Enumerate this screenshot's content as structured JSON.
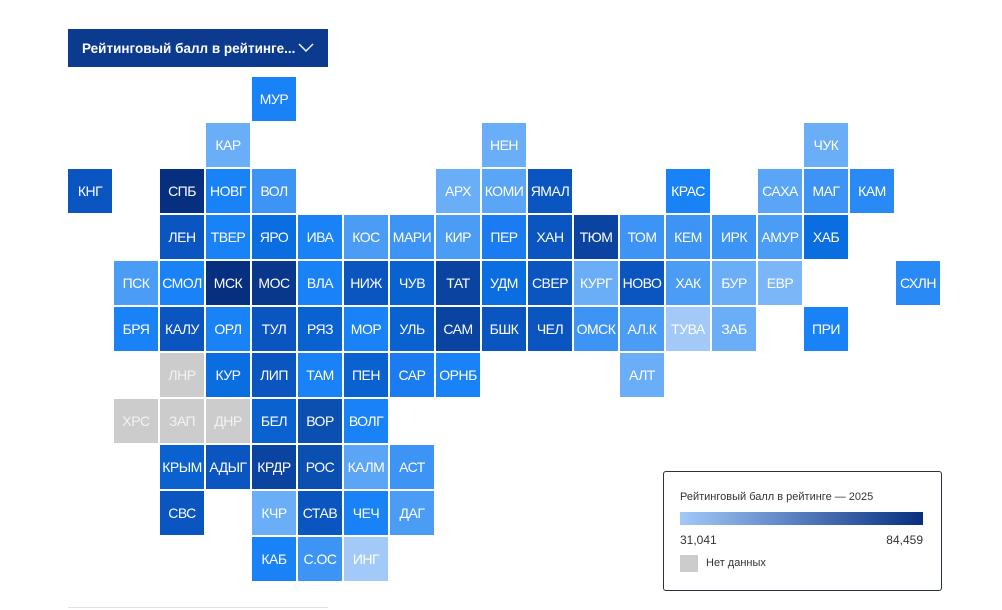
{
  "dropdown": {
    "label": "Рейтинговый балл в рейтинге...",
    "icon": "chevron-down-icon"
  },
  "colors": {
    "brand": "#0b3a8e",
    "no_data": "#cccccc",
    "scale_min": "#a3c9f9",
    "scale_max": "#072f80"
  },
  "tiles": [
    {
      "label": "МУР",
      "color": "#1a82f7"
    },
    {
      "label": "КАР",
      "color": "#6aaef7"
    },
    {
      "label": "НЕН",
      "color": "#6aaef7"
    },
    {
      "label": "ЧУК",
      "color": "#6aaef7"
    },
    {
      "label": "КНГ",
      "color": "#0b55c0"
    },
    {
      "label": "СПБ",
      "color": "#072f80"
    },
    {
      "label": "НОВГ",
      "color": "#1a82f7"
    },
    {
      "label": "ВОЛ",
      "color": "#3d94f5"
    },
    {
      "label": "АРХ",
      "color": "#6aaef7"
    },
    {
      "label": "КОМИ",
      "color": "#5aa5f5"
    },
    {
      "label": "ЯМАЛ",
      "color": "#0b55c0"
    },
    {
      "label": "КРАС",
      "color": "#1a82f7"
    },
    {
      "label": "САХА",
      "color": "#5aa5f5"
    },
    {
      "label": "МАГ",
      "color": "#3d94f5"
    },
    {
      "label": "КАМ",
      "color": "#2a8af5"
    },
    {
      "label": "ЛЕН",
      "color": "#0b55c0"
    },
    {
      "label": "ТВЕР",
      "color": "#1a82f7"
    },
    {
      "label": "ЯРО",
      "color": "#0a6ee0"
    },
    {
      "label": "ИВА",
      "color": "#1a82f7"
    },
    {
      "label": "КОС",
      "color": "#4a9cf5"
    },
    {
      "label": "МАРИ",
      "color": "#3d94f5"
    },
    {
      "label": "КИР",
      "color": "#4a9cf5"
    },
    {
      "label": "ПЕР",
      "color": "#1a7cf0"
    },
    {
      "label": "ХАН",
      "color": "#0b55c0"
    },
    {
      "label": "ТЮМ",
      "color": "#0a44a0"
    },
    {
      "label": "ТОМ",
      "color": "#3d94f5"
    },
    {
      "label": "КЕМ",
      "color": "#3d94f5"
    },
    {
      "label": "ИРК",
      "color": "#3d94f5"
    },
    {
      "label": "АМУР",
      "color": "#4a9cf5"
    },
    {
      "label": "ХАБ",
      "color": "#0a6ee0"
    },
    {
      "label": "ПСК",
      "color": "#4a9cf5"
    },
    {
      "label": "СМОЛ",
      "color": "#1a82f7"
    },
    {
      "label": "МСК",
      "color": "#072f80"
    },
    {
      "label": "МОС",
      "color": "#08378c"
    },
    {
      "label": "ВЛА",
      "color": "#1a82f7"
    },
    {
      "label": "НИЖ",
      "color": "#0b55c0"
    },
    {
      "label": "ЧУВ",
      "color": "#0a62d0"
    },
    {
      "label": "ТАТ",
      "color": "#0a44a0"
    },
    {
      "label": "УДМ",
      "color": "#0a6ee0"
    },
    {
      "label": "СВЕР",
      "color": "#0b55c0"
    },
    {
      "label": "КУРГ",
      "color": "#6aaef7"
    },
    {
      "label": "НОВО",
      "color": "#0b55c0"
    },
    {
      "label": "ХАК",
      "color": "#4a9cf5"
    },
    {
      "label": "БУР",
      "color": "#6aaef7"
    },
    {
      "label": "ЕВР",
      "color": "#7ab6f8"
    },
    {
      "label": "СХЛН",
      "color": "#2a8af5"
    },
    {
      "label": "БРЯ",
      "color": "#1a82f7"
    },
    {
      "label": "КАЛУ",
      "color": "#0b55c0"
    },
    {
      "label": "ОРЛ",
      "color": "#1a82f7"
    },
    {
      "label": "ТУЛ",
      "color": "#0b55c0"
    },
    {
      "label": "РЯЗ",
      "color": "#0a62d0"
    },
    {
      "label": "МОР",
      "color": "#1a82f7"
    },
    {
      "label": "УЛЬ",
      "color": "#0a62d0"
    },
    {
      "label": "САМ",
      "color": "#0a44a0"
    },
    {
      "label": "БШК",
      "color": "#0b55c0"
    },
    {
      "label": "ЧЕЛ",
      "color": "#0b55c0"
    },
    {
      "label": "ОМСК",
      "color": "#3d94f5"
    },
    {
      "label": "АЛ.К",
      "color": "#4a9cf5"
    },
    {
      "label": "ТУВА",
      "color": "#a3c9f9"
    },
    {
      "label": "ЗАБ",
      "color": "#6aaef7"
    },
    {
      "label": "ПРИ",
      "color": "#1a82f7"
    },
    {
      "label": "ЛНР",
      "color": "#cccccc",
      "nodata": true
    },
    {
      "label": "КУР",
      "color": "#0a6ee0"
    },
    {
      "label": "ЛИП",
      "color": "#0b55c0"
    },
    {
      "label": "ТАМ",
      "color": "#1a82f7"
    },
    {
      "label": "ПЕН",
      "color": "#0a62d0"
    },
    {
      "label": "САР",
      "color": "#1a7cf0"
    },
    {
      "label": "ОРНБ",
      "color": "#1a82f7"
    },
    {
      "label": "АЛТ",
      "color": "#6aaef7"
    },
    {
      "label": "ХРС",
      "color": "#cccccc",
      "nodata": true
    },
    {
      "label": "ЗАП",
      "color": "#cccccc",
      "nodata": true
    },
    {
      "label": "ДНР",
      "color": "#cccccc",
      "nodata": true
    },
    {
      "label": "БЕЛ",
      "color": "#0a62d0"
    },
    {
      "label": "ВОР",
      "color": "#0b4fb0"
    },
    {
      "label": "ВОЛГ",
      "color": "#1a82f7"
    },
    {
      "label": "КРЫМ",
      "color": "#0a62d0"
    },
    {
      "label": "АДЫГ",
      "color": "#0b55c0"
    },
    {
      "label": "КРДР",
      "color": "#0a44a0"
    },
    {
      "label": "РОС",
      "color": "#0b4fb0"
    },
    {
      "label": "КАЛМ",
      "color": "#5aa5f5"
    },
    {
      "label": "АСТ",
      "color": "#3d94f5"
    },
    {
      "label": "СВС",
      "color": "#0b55c0"
    },
    {
      "label": "КЧР",
      "color": "#6aaef7"
    },
    {
      "label": "СТАВ",
      "color": "#0b55c0"
    },
    {
      "label": "ЧЕЧ",
      "color": "#1a82f7"
    },
    {
      "label": "ДАГ",
      "color": "#4a9cf5"
    },
    {
      "label": "КАБ",
      "color": "#1a82f7"
    },
    {
      "label": "С.ОС",
      "color": "#3d94f5"
    },
    {
      "label": "ИНГ",
      "color": "#a3c9f9"
    }
  ],
  "legend": {
    "title": "Рейтинговый балл в рейтинге — 2025",
    "min": "31,041",
    "max": "84,459",
    "no_data_label": "Нет данных"
  }
}
